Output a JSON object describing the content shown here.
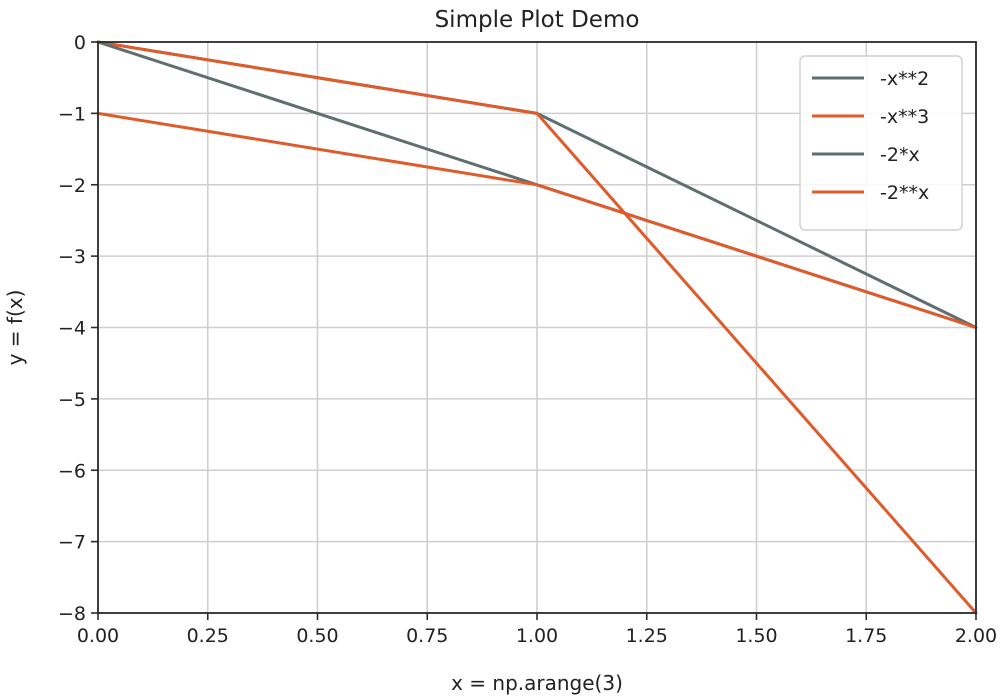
{
  "chart_data": {
    "type": "line",
    "title": "Simple Plot Demo",
    "xlabel": "x = np.arange(3)",
    "ylabel": "y = f(x)",
    "xlim": [
      0,
      2
    ],
    "ylim": [
      -8,
      0
    ],
    "x_ticks": [
      0,
      0.25,
      0.5,
      0.75,
      1.0,
      1.25,
      1.5,
      1.75,
      2.0
    ],
    "x_tick_labels": [
      "0.00",
      "0.25",
      "0.50",
      "0.75",
      "1.00",
      "1.25",
      "1.50",
      "1.75",
      "2.00"
    ],
    "y_ticks": [
      0,
      -1,
      -2,
      -3,
      -4,
      -5,
      -6,
      -7,
      -8
    ],
    "y_tick_labels": [
      "0",
      "−1",
      "−2",
      "−3",
      "−4",
      "−5",
      "−6",
      "−7",
      "−8"
    ],
    "grid": true,
    "legend_position": "top-right",
    "x": [
      0,
      1,
      2
    ],
    "series": [
      {
        "name": "-x**2",
        "values": [
          0,
          -1,
          -4
        ],
        "color": "#5f6e6e"
      },
      {
        "name": "-x**3",
        "values": [
          0,
          -1,
          -8
        ],
        "color": "#e05a2a"
      },
      {
        "name": "-2*x",
        "values": [
          0,
          -2,
          -4
        ],
        "color": "#5f6e6e"
      },
      {
        "name": "-2**x",
        "values": [
          -1,
          -2,
          -4
        ],
        "color": "#e05a2a"
      }
    ]
  }
}
